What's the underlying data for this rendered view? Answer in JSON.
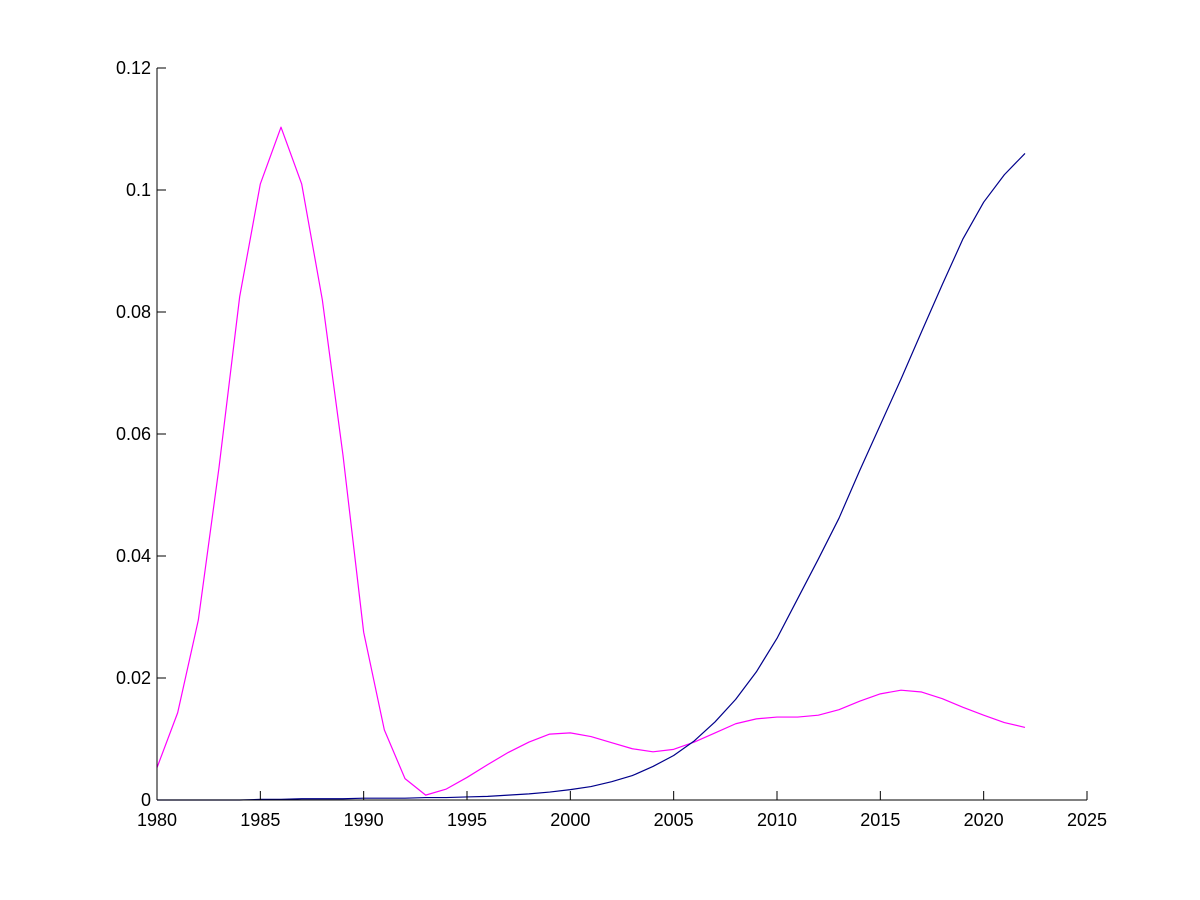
{
  "chart_data": {
    "type": "line",
    "title": "",
    "xlabel": "",
    "ylabel": "",
    "xlim": [
      1980,
      2025
    ],
    "ylim": [
      0,
      0.12
    ],
    "grid": false,
    "legend": "none",
    "x_ticks": [
      {
        "value": 1980,
        "label": "1980"
      },
      {
        "value": 1985,
        "label": "1985"
      },
      {
        "value": 1990,
        "label": "1990"
      },
      {
        "value": 1995,
        "label": "1995"
      },
      {
        "value": 2000,
        "label": "2000"
      },
      {
        "value": 2005,
        "label": "2005"
      },
      {
        "value": 2010,
        "label": "2010"
      },
      {
        "value": 2015,
        "label": "2015"
      },
      {
        "value": 2020,
        "label": "2020"
      },
      {
        "value": 2025,
        "label": "2025"
      }
    ],
    "y_ticks": [
      {
        "value": 0,
        "label": "0"
      },
      {
        "value": 0.02,
        "label": "0.02"
      },
      {
        "value": 0.04,
        "label": "0.04"
      },
      {
        "value": 0.06,
        "label": "0.06"
      },
      {
        "value": 0.08,
        "label": "0.08"
      },
      {
        "value": 0.1,
        "label": "0.1"
      },
      {
        "value": 0.12,
        "label": "0.12"
      }
    ],
    "x": [
      1980,
      1981,
      1982,
      1983,
      1984,
      1985,
      1986,
      1987,
      1988,
      1989,
      1990,
      1991,
      1992,
      1993,
      1994,
      1995,
      1996,
      1997,
      1998,
      1999,
      2000,
      2001,
      2002,
      2003,
      2004,
      2005,
      2006,
      2007,
      2008,
      2009,
      2010,
      2011,
      2012,
      2013,
      2014,
      2015,
      2016,
      2017,
      2018,
      2019,
      2020,
      2021,
      2022
    ],
    "series": [
      {
        "color": "#ff00ff",
        "values": [
          0.0053,
          0.0143,
          0.0295,
          0.0545,
          0.0825,
          0.101,
          0.1103,
          0.101,
          0.082,
          0.0565,
          0.0275,
          0.0115,
          0.0035,
          0.0008,
          0.0018,
          0.0037,
          0.0058,
          0.0078,
          0.0095,
          0.0108,
          0.011,
          0.0104,
          0.0094,
          0.0084,
          0.0079,
          0.0083,
          0.0095,
          0.011,
          0.0125,
          0.0133,
          0.0136,
          0.0136,
          0.0139,
          0.0148,
          0.0162,
          0.0174,
          0.018,
          0.0177,
          0.0166,
          0.0152,
          0.0139,
          0.0127,
          0.0119
        ]
      },
      {
        "color": "#00008b",
        "values": [
          0.0,
          0.0,
          0.0,
          0.0,
          0.0,
          0.0001,
          0.0001,
          0.0002,
          0.0002,
          0.0002,
          0.0003,
          0.0003,
          0.0003,
          0.0004,
          0.0004,
          0.0005,
          0.0006,
          0.0008,
          0.001,
          0.0013,
          0.0017,
          0.0022,
          0.003,
          0.004,
          0.0055,
          0.0073,
          0.0097,
          0.0128,
          0.0165,
          0.021,
          0.0265,
          0.033,
          0.0395,
          0.0462,
          0.054,
          0.0615,
          0.069,
          0.0768,
          0.0845,
          0.092,
          0.098,
          0.1025,
          0.106
        ]
      }
    ]
  }
}
